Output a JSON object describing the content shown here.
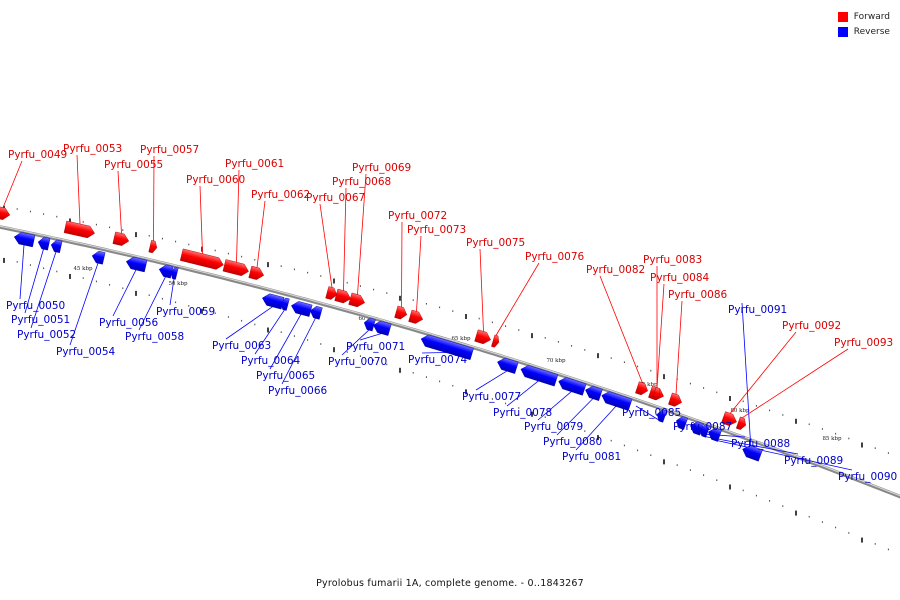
{
  "legend": {
    "forward": {
      "label": "Forward",
      "color": "#ff0000"
    },
    "reverse": {
      "label": "Reverse",
      "color": "#0000ff"
    }
  },
  "caption": "Pyrolobus fumarii 1A, complete genome. - 0..1843267",
  "ticks": [
    "45 kbp",
    "50 kbp",
    "55 kbp",
    "60 kbp",
    "65 kbp",
    "70 kbp",
    "75 kbp",
    "80 kbp",
    "85 kbp"
  ],
  "genes": [
    {
      "id": "Pyrfu_0049",
      "strand": "forward"
    },
    {
      "id": "Pyrfu_0050",
      "strand": "reverse"
    },
    {
      "id": "Pyrfu_0051",
      "strand": "reverse"
    },
    {
      "id": "Pyrfu_0052",
      "strand": "reverse"
    },
    {
      "id": "Pyrfu_0053",
      "strand": "forward"
    },
    {
      "id": "Pyrfu_0054",
      "strand": "reverse"
    },
    {
      "id": "Pyrfu_0055",
      "strand": "forward"
    },
    {
      "id": "Pyrfu_0056",
      "strand": "reverse"
    },
    {
      "id": "Pyrfu_0057",
      "strand": "forward"
    },
    {
      "id": "Pyrfu_0058",
      "strand": "reverse"
    },
    {
      "id": "Pyrfu_0059",
      "strand": "reverse"
    },
    {
      "id": "Pyrfu_0060",
      "strand": "forward"
    },
    {
      "id": "Pyrfu_0061",
      "strand": "forward"
    },
    {
      "id": "Pyrfu_0062",
      "strand": "forward"
    },
    {
      "id": "Pyrfu_0063",
      "strand": "reverse"
    },
    {
      "id": "Pyrfu_0064",
      "strand": "reverse"
    },
    {
      "id": "Pyrfu_0065",
      "strand": "reverse"
    },
    {
      "id": "Pyrfu_0066",
      "strand": "reverse"
    },
    {
      "id": "Pyrfu_0067",
      "strand": "forward"
    },
    {
      "id": "Pyrfu_0068",
      "strand": "forward"
    },
    {
      "id": "Pyrfu_0069",
      "strand": "forward"
    },
    {
      "id": "Pyrfu_0070",
      "strand": "reverse"
    },
    {
      "id": "Pyrfu_0071",
      "strand": "reverse"
    },
    {
      "id": "Pyrfu_0072",
      "strand": "forward"
    },
    {
      "id": "Pyrfu_0073",
      "strand": "forward"
    },
    {
      "id": "Pyrfu_0074",
      "strand": "reverse"
    },
    {
      "id": "Pyrfu_0075",
      "strand": "forward"
    },
    {
      "id": "Pyrfu_0076",
      "strand": "forward"
    },
    {
      "id": "Pyrfu_0077",
      "strand": "reverse"
    },
    {
      "id": "Pyrfu_0078",
      "strand": "reverse"
    },
    {
      "id": "Pyrfu_0079",
      "strand": "reverse"
    },
    {
      "id": "Pyrfu_0080",
      "strand": "reverse"
    },
    {
      "id": "Pyrfu_0081",
      "strand": "reverse"
    },
    {
      "id": "Pyrfu_0082",
      "strand": "forward"
    },
    {
      "id": "Pyrfu_0083",
      "strand": "forward"
    },
    {
      "id": "Pyrfu_0084",
      "strand": "forward"
    },
    {
      "id": "Pyrfu_0085",
      "strand": "reverse"
    },
    {
      "id": "Pyrfu_0086",
      "strand": "forward"
    },
    {
      "id": "Pyrfu_0087",
      "strand": "reverse"
    },
    {
      "id": "Pyrfu_0088",
      "strand": "reverse"
    },
    {
      "id": "Pyrfu_0089",
      "strand": "reverse"
    },
    {
      "id": "Pyrfu_0090",
      "strand": "reverse"
    },
    {
      "id": "Pyrfu_0091",
      "strand": "reverse"
    },
    {
      "id": "Pyrfu_0092",
      "strand": "forward"
    },
    {
      "id": "Pyrfu_0093",
      "strand": "forward"
    }
  ]
}
